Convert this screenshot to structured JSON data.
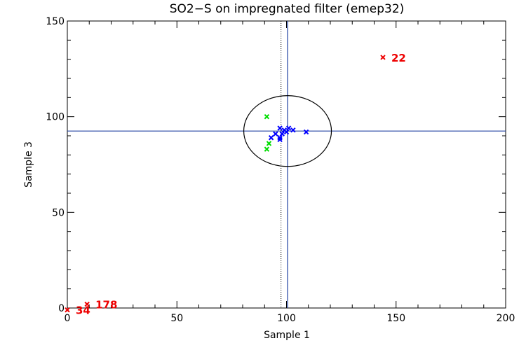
{
  "chart_data": {
    "type": "scatter",
    "title": "SO2−S on impregnated filter (emep32)",
    "xlabel": "Sample 1",
    "ylabel": "Sample 3",
    "xlim": [
      0,
      200
    ],
    "ylim": [
      0,
      150
    ],
    "x_ticks": [
      "0",
      "50",
      "100",
      "150",
      "200"
    ],
    "y_ticks": [
      "0",
      "50",
      "100",
      "150"
    ],
    "x_tick_values": [
      0,
      50,
      100,
      150,
      200
    ],
    "y_tick_values": [
      0,
      50,
      100,
      150
    ],
    "reference_lines": {
      "vertical_solid_x": 100.5,
      "vertical_dotted_x": 97.5,
      "horizontal_solid_y": 92.5
    },
    "ellipse": {
      "center": [
        100.5,
        92.5
      ],
      "radius_x": 20,
      "radius_y": 18.5
    },
    "series": [
      {
        "color": "#0000ff",
        "marker": "x",
        "points": [
          [
            97,
            94
          ],
          [
            99,
            93
          ],
          [
            101,
            94
          ],
          [
            103,
            93
          ],
          [
            100,
            92
          ],
          [
            95,
            91
          ],
          [
            98,
            91
          ],
          [
            93,
            89
          ],
          [
            97,
            89
          ],
          [
            97,
            88
          ],
          [
            109,
            92
          ]
        ]
      },
      {
        "color": "#00dd00",
        "marker": "x",
        "points": [
          [
            91,
            100
          ],
          [
            92,
            86
          ],
          [
            91,
            83
          ]
        ]
      },
      {
        "color": "#ee0000",
        "marker": "x",
        "points": [
          [
            144,
            131
          ],
          [
            9,
            2
          ],
          [
            0,
            -1
          ]
        ]
      }
    ],
    "annotations": [
      {
        "text": "22",
        "x": 144,
        "y": 131,
        "color": "#ee0000"
      },
      {
        "text": "178",
        "x": 9,
        "y": 2,
        "color": "#ee0000"
      },
      {
        "text": "34",
        "x": 0,
        "y": -1,
        "color": "#ee0000"
      }
    ],
    "frame_color": "#000000",
    "refline_color": "#1f3f9f"
  }
}
